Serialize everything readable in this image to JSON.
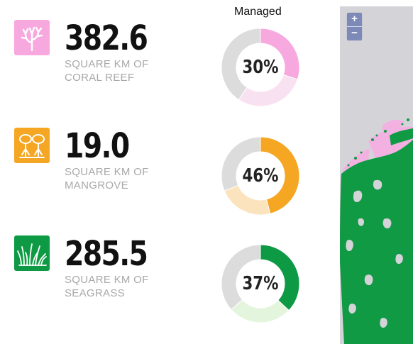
{
  "header": {
    "managed_label": "Managed"
  },
  "stats": [
    {
      "icon": "coral-icon",
      "value": "382.6",
      "unit_line1": "SQUARE KM OF",
      "unit_line2": "CORAL REEF",
      "managed_pct": "30%",
      "managed_fraction": 0.3,
      "colors": {
        "icon_bg": "#f7a8df",
        "managed": "#f7a8df",
        "unmanaged": "#f8e2f2",
        "rest": "#dcdcdc"
      }
    },
    {
      "icon": "mangrove-icon",
      "value": "19.0",
      "unit_line1": "SQUARE KM OF",
      "unit_line2": "MANGROVE",
      "managed_pct": "46%",
      "managed_fraction": 0.46,
      "colors": {
        "icon_bg": "#f5a623",
        "managed": "#f5a623",
        "unmanaged": "#fbe3bd",
        "rest": "#dcdcdc"
      }
    },
    {
      "icon": "seagrass-icon",
      "value": "285.5",
      "unit_line1": "SQUARE KM OF",
      "unit_line2": "SEAGRASS",
      "managed_pct": "37%",
      "managed_fraction": 0.37,
      "colors": {
        "icon_bg": "#0e9a44",
        "managed": "#0e9a44",
        "unmanaged": "#e3f6dd",
        "rest": "#dcdcdc"
      }
    }
  ],
  "map": {
    "zoom_in": "+",
    "zoom_out": "−",
    "colors": {
      "water": "#d4d3d8",
      "seagrass": "#109a44",
      "coral": "#f3b1e2"
    }
  }
}
